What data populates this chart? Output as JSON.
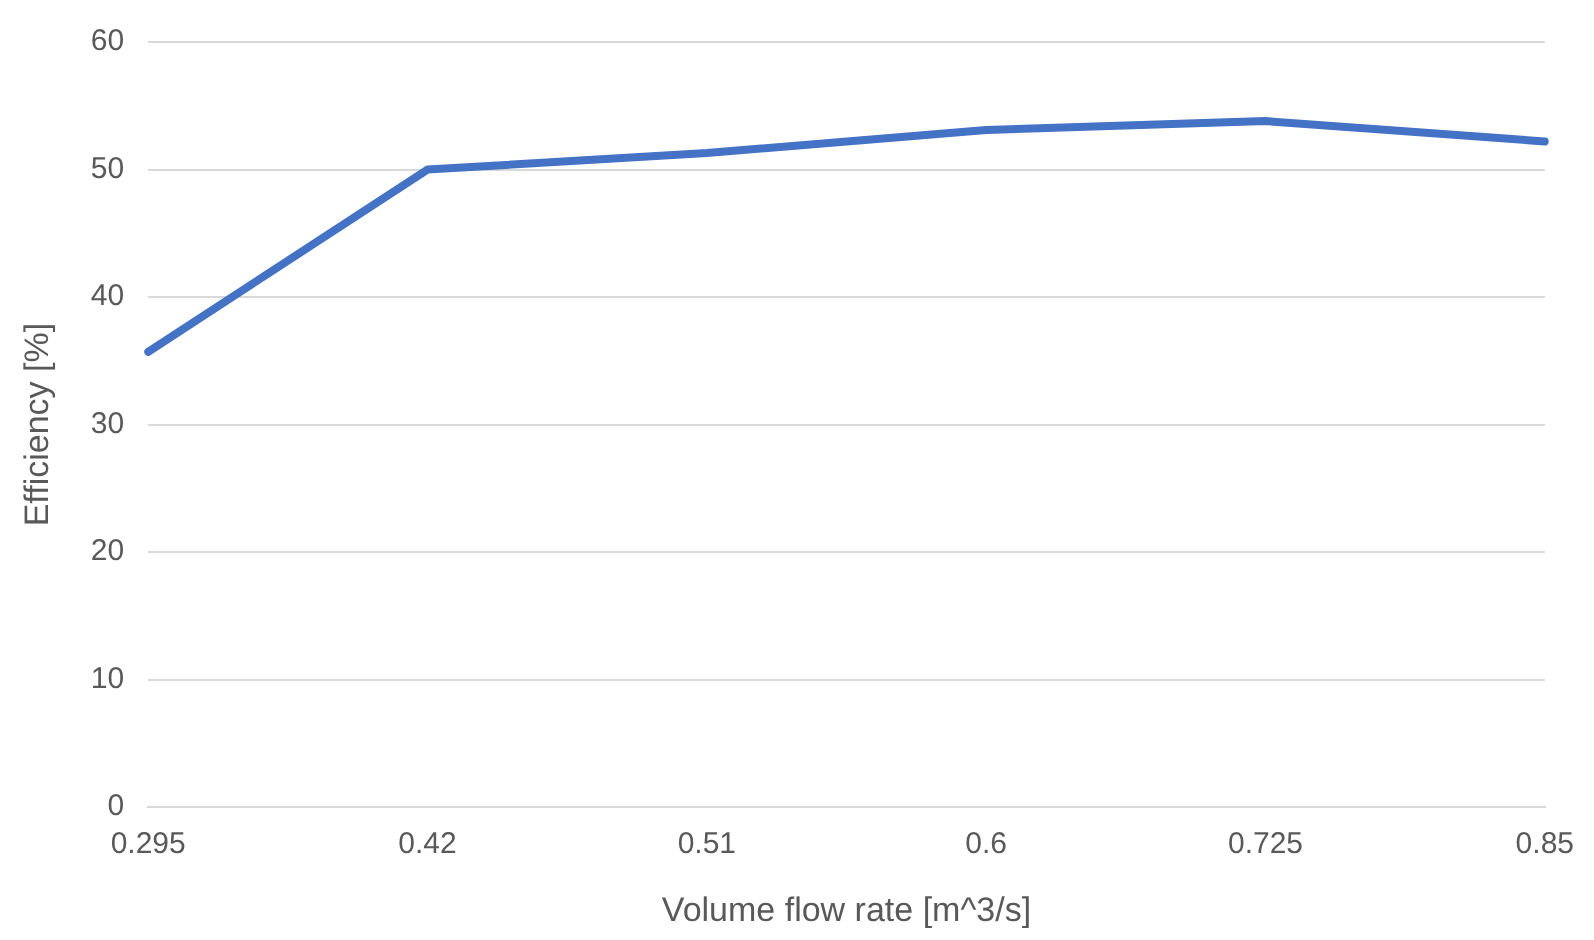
{
  "chart_data": {
    "type": "line",
    "xlabel": "Volume flow rate [m^3/s]",
    "ylabel": "Efficiency [%]",
    "categories": [
      "0.295",
      "0.42",
      "0.51",
      "0.6",
      "0.725",
      "0.85"
    ],
    "series": [
      {
        "color": "#4472c4",
        "values": [
          35.7,
          50,
          51.3,
          53.1,
          53.8,
          52.2
        ]
      }
    ],
    "ylim": [
      0,
      60
    ],
    "yticks": [
      0,
      10,
      20,
      30,
      40,
      50,
      60
    ],
    "grid": "y",
    "legend": false,
    "marker": "none",
    "line_style": "solid"
  }
}
